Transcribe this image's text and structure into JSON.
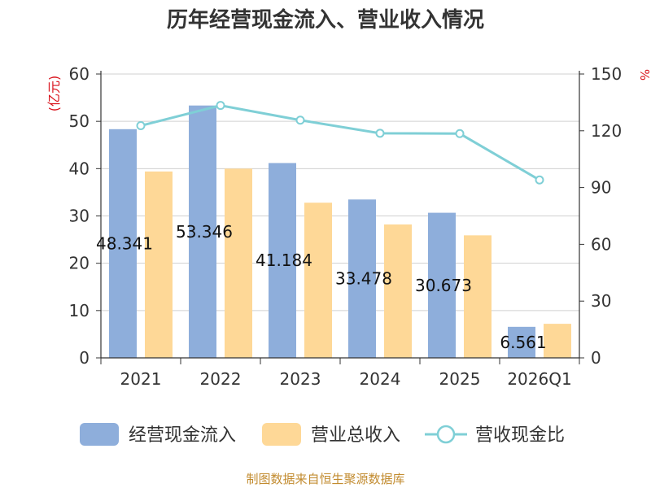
{
  "chart_data": {
    "type": "bar",
    "title": "历年经营现金流入、营业收入情况",
    "categories": [
      "2021",
      "2022",
      "2023",
      "2024",
      "2025",
      "2026Q1"
    ],
    "series": [
      {
        "name": "经营现金流入",
        "type": "bar",
        "axis": "left",
        "color": "#8eaedb",
        "values": [
          48.341,
          53.346,
          41.184,
          33.478,
          30.673,
          6.561
        ],
        "labels": [
          "48.341",
          "53.346",
          "41.184",
          "33.478",
          "30.673",
          "6.561"
        ]
      },
      {
        "name": "营业总收入",
        "type": "bar",
        "axis": "left",
        "color": "#fed897",
        "values": [
          39.4,
          40.0,
          32.8,
          28.2,
          25.9,
          7.2
        ]
      },
      {
        "name": "营收现金比",
        "type": "line",
        "axis": "right",
        "color": "#7fcfd6",
        "values": [
          122.7,
          133.4,
          125.6,
          118.7,
          118.5,
          94.0
        ]
      }
    ],
    "left_axis": {
      "label": "(亿元)",
      "ylim": [
        0,
        60
      ],
      "ticks": [
        0,
        10,
        20,
        30,
        40,
        50,
        60
      ]
    },
    "right_axis": {
      "label": "%",
      "ylim": [
        0,
        150
      ],
      "ticks": [
        0,
        30,
        60,
        90,
        120,
        150
      ]
    },
    "grid": true,
    "legend_position": "bottom",
    "label_color": "#d9121b",
    "source_color": "#c28b2f"
  },
  "source": "制图数据来自恒生聚源数据库"
}
